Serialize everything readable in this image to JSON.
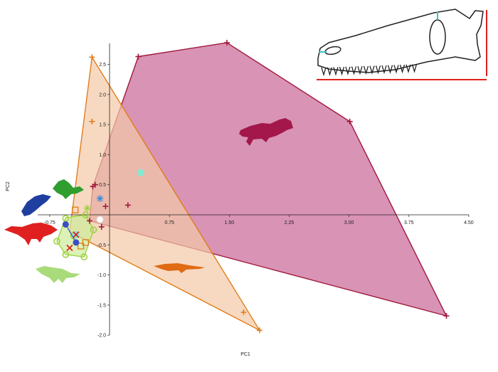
{
  "chart_data": {
    "type": "scatter",
    "title": "",
    "xlabel": "PC1",
    "ylabel": "PC2",
    "xlim": [
      -0.9,
      4.5
    ],
    "ylim": [
      -2.0,
      2.85
    ],
    "x_ticks": [
      "-0.75",
      "0.75",
      "1.50",
      "2.25",
      "3.00",
      "3.75",
      "4.50"
    ],
    "y_ticks": [
      "2.5",
      "2.0",
      "1.5",
      "1.0",
      "0.5",
      "-0.5",
      "-1.0",
      "-1.5",
      "-2.0"
    ],
    "grid": false,
    "series": [
      {
        "group": "crocodylomorph",
        "color": "#a0193c",
        "fill": "#c96a99",
        "marker": "plus",
        "hull": [
          [
            -0.21,
            0.47
          ],
          [
            0.36,
            2.63
          ],
          [
            1.47,
            2.86
          ],
          [
            3.01,
            1.55
          ],
          [
            4.22,
            -1.68
          ],
          [
            -0.25,
            -0.1
          ]
        ],
        "points": [
          [
            0.36,
            2.63
          ],
          [
            1.47,
            2.86
          ],
          [
            3.01,
            1.55
          ],
          [
            4.22,
            -1.68
          ],
          [
            -0.21,
            0.47
          ],
          [
            -0.18,
            0.5
          ],
          [
            -0.05,
            0.14
          ],
          [
            0.23,
            0.16
          ],
          [
            -0.1,
            -0.2
          ],
          [
            -0.25,
            -0.1
          ]
        ]
      },
      {
        "group": "orange-taxa",
        "color": "#e07d1a",
        "fill": "#f4c9a8",
        "marker": "plus",
        "hull": [
          [
            -0.22,
            2.62
          ],
          [
            1.88,
            -1.92
          ],
          [
            -0.5,
            -0.28
          ]
        ],
        "points": [
          [
            -0.22,
            2.62
          ],
          [
            -0.22,
            1.55
          ],
          [
            1.68,
            -1.62
          ],
          [
            1.88,
            -1.92
          ]
        ]
      },
      {
        "group": "orange-squares",
        "color": "#e07d1a",
        "marker": "square",
        "points": [
          [
            -0.43,
            0.08
          ],
          [
            -0.3,
            -0.46
          ],
          [
            -0.36,
            -0.52
          ]
        ]
      },
      {
        "group": "green-theropods",
        "color": "#9ed23f",
        "fill": "#cdeb9a",
        "marker": "circle-open",
        "hull": [
          [
            -0.55,
            -0.05
          ],
          [
            -0.3,
            0.0
          ],
          [
            -0.2,
            -0.25
          ],
          [
            -0.32,
            -0.7
          ],
          [
            -0.55,
            -0.66
          ],
          [
            -0.66,
            -0.44
          ]
        ],
        "points": [
          [
            -0.55,
            -0.06
          ],
          [
            -0.3,
            0.0
          ],
          [
            -0.2,
            -0.25
          ],
          [
            -0.32,
            -0.7
          ],
          [
            -0.55,
            -0.66
          ],
          [
            -0.66,
            -0.44
          ],
          [
            -0.45,
            -0.35
          ]
        ]
      },
      {
        "group": "blue-points",
        "color": "#3d4fc2",
        "marker": "circle",
        "points": [
          [
            -0.55,
            -0.16
          ],
          [
            -0.42,
            -0.46
          ]
        ]
      },
      {
        "group": "teal-points",
        "color": "#86e8d0",
        "marker": "circle",
        "points": [
          [
            0.39,
            0.7
          ],
          [
            -0.42,
            -0.33
          ]
        ]
      },
      {
        "group": "white-point",
        "color": "#ffffff",
        "marker": "circle",
        "points": [
          [
            -0.12,
            -0.08
          ]
        ]
      },
      {
        "group": "red-crosses",
        "color": "#e02020",
        "marker": "x",
        "points": [
          [
            -0.5,
            -0.55
          ],
          [
            -0.42,
            -0.33
          ]
        ]
      },
      {
        "group": "light-blue-star",
        "color": "#3a8cd8",
        "marker": "asterisk",
        "points": [
          [
            -0.12,
            0.27
          ]
        ]
      },
      {
        "group": "green-star",
        "color": "#9ed23f",
        "marker": "asterisk",
        "points": [
          [
            -0.28,
            0.11
          ]
        ]
      }
    ],
    "silhouettes": [
      {
        "name": "crocodile-silhouette",
        "color": "#a3174a"
      },
      {
        "name": "orange-crocodylomorph-silhouette",
        "color": "#e06b14"
      },
      {
        "name": "green-lizard-silhouette",
        "color": "#2f9e2f"
      },
      {
        "name": "blue-swimming-reptile-silhouette",
        "color": "#1f3fa0"
      },
      {
        "name": "red-theropod-silhouette",
        "color": "#e02020"
      },
      {
        "name": "light-green-theropod-silhouette",
        "color": "#a9db7a"
      }
    ],
    "inset": {
      "name": "skull-outline-diagram",
      "outline_color": "#222222",
      "measure_color": "#e02020",
      "landmark_color": "#34c6c6"
    }
  }
}
